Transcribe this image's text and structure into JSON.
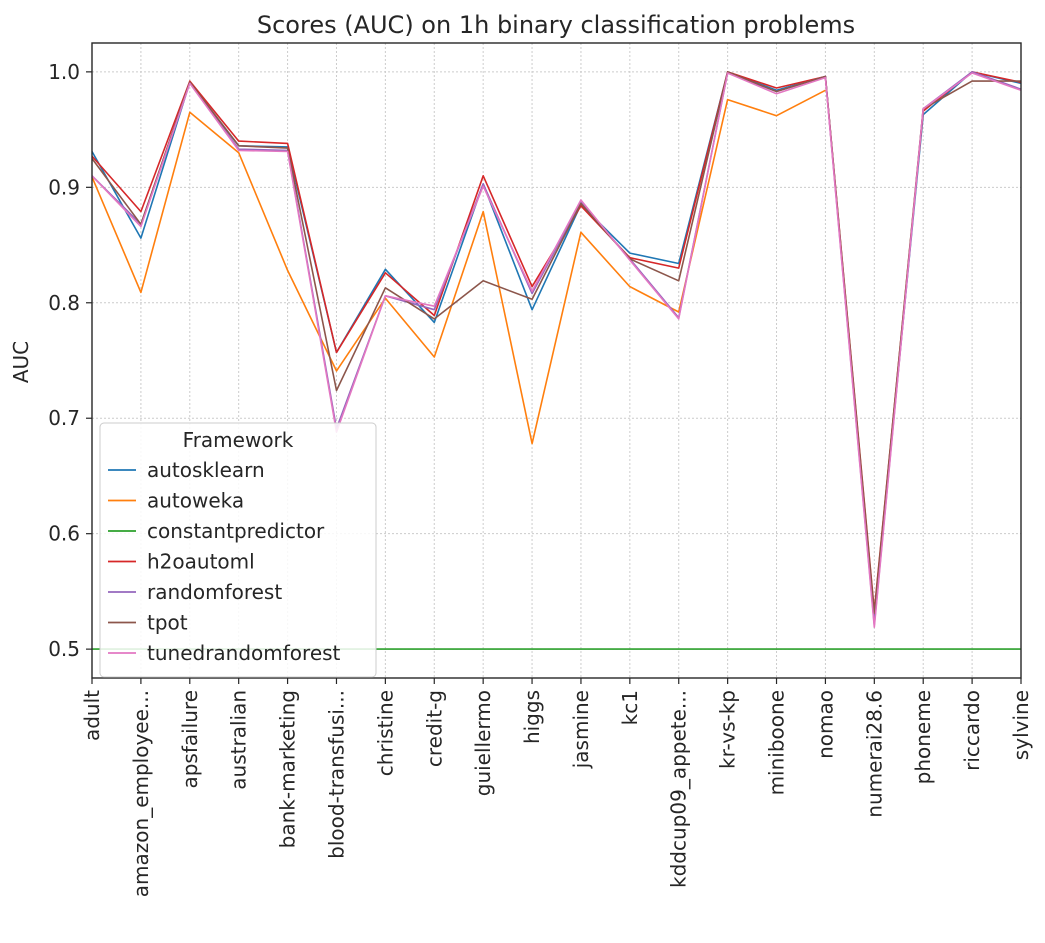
{
  "chart_data": {
    "type": "line",
    "title": "Scores (AUC) on 1h binary classification problems",
    "xlabel": "",
    "ylabel": "AUC",
    "ylim": [
      0.475,
      1.025
    ],
    "yticks": [
      "0.5",
      "0.6",
      "0.7",
      "0.8",
      "0.9",
      "1.0"
    ],
    "grid": true,
    "legend": {
      "title": "Framework",
      "placement": "lower-left"
    },
    "categories": [
      "adult",
      "amazon_employee...",
      "apsfailure",
      "australian",
      "bank-marketing",
      "blood-transfusi...",
      "christine",
      "credit-g",
      "guiellermo",
      "higgs",
      "jasmine",
      "kc1",
      "kddcup09_appete...",
      "kr-vs-kp",
      "miniboone",
      "nomao",
      "numerai28.6",
      "phoneme",
      "riccardo",
      "sylvine"
    ],
    "series": [
      {
        "name": "autosklearn",
        "color": "#1f77b4",
        "values": [
          0.931,
          0.856,
          0.991,
          0.936,
          0.935,
          0.757,
          0.829,
          0.783,
          0.903,
          0.794,
          0.885,
          0.843,
          0.834,
          1.0,
          0.984,
          0.996,
          0.527,
          0.963,
          1.0,
          0.99
        ]
      },
      {
        "name": "autoweka",
        "color": "#ff7f0e",
        "values": [
          0.909,
          0.809,
          0.965,
          0.93,
          0.828,
          0.741,
          0.804,
          0.753,
          0.879,
          0.678,
          0.861,
          0.814,
          0.792,
          0.976,
          0.962,
          0.984,
          null,
          null,
          null,
          null
        ]
      },
      {
        "name": "constantpredictor",
        "color": "#2ca02c",
        "values": [
          0.5,
          0.5,
          0.5,
          0.5,
          0.5,
          0.5,
          0.5,
          0.5,
          0.5,
          0.5,
          0.5,
          0.5,
          0.5,
          0.5,
          0.5,
          0.5,
          0.5,
          0.5,
          0.5,
          0.5
        ]
      },
      {
        "name": "h2oautoml",
        "color": "#d62728",
        "values": [
          0.927,
          0.879,
          0.992,
          0.94,
          0.938,
          0.757,
          0.826,
          0.789,
          0.91,
          0.814,
          0.884,
          0.839,
          0.83,
          1.0,
          0.986,
          0.996,
          0.533,
          0.966,
          1.0,
          0.991
        ]
      },
      {
        "name": "randomforest",
        "color": "#9467bd",
        "values": [
          0.91,
          0.868,
          0.991,
          0.933,
          0.932,
          0.691,
          0.806,
          0.794,
          0.903,
          0.808,
          0.887,
          0.838,
          0.787,
          0.999,
          0.983,
          0.996,
          0.521,
          0.968,
          1.0,
          0.985
        ]
      },
      {
        "name": "tpot",
        "color": "#8c564b",
        "values": [
          0.925,
          0.868,
          0.991,
          0.936,
          0.934,
          0.724,
          0.813,
          0.786,
          0.819,
          0.803,
          0.886,
          0.838,
          0.819,
          1.0,
          0.983,
          0.996,
          0.531,
          0.968,
          0.992,
          0.992
        ]
      },
      {
        "name": "tunedrandomforest",
        "color": "#e377c2",
        "values": [
          0.91,
          0.866,
          0.99,
          0.932,
          0.931,
          0.688,
          0.806,
          0.797,
          0.901,
          0.81,
          0.889,
          0.837,
          0.786,
          0.999,
          0.981,
          0.995,
          0.519,
          0.968,
          0.999,
          0.984
        ]
      }
    ]
  }
}
